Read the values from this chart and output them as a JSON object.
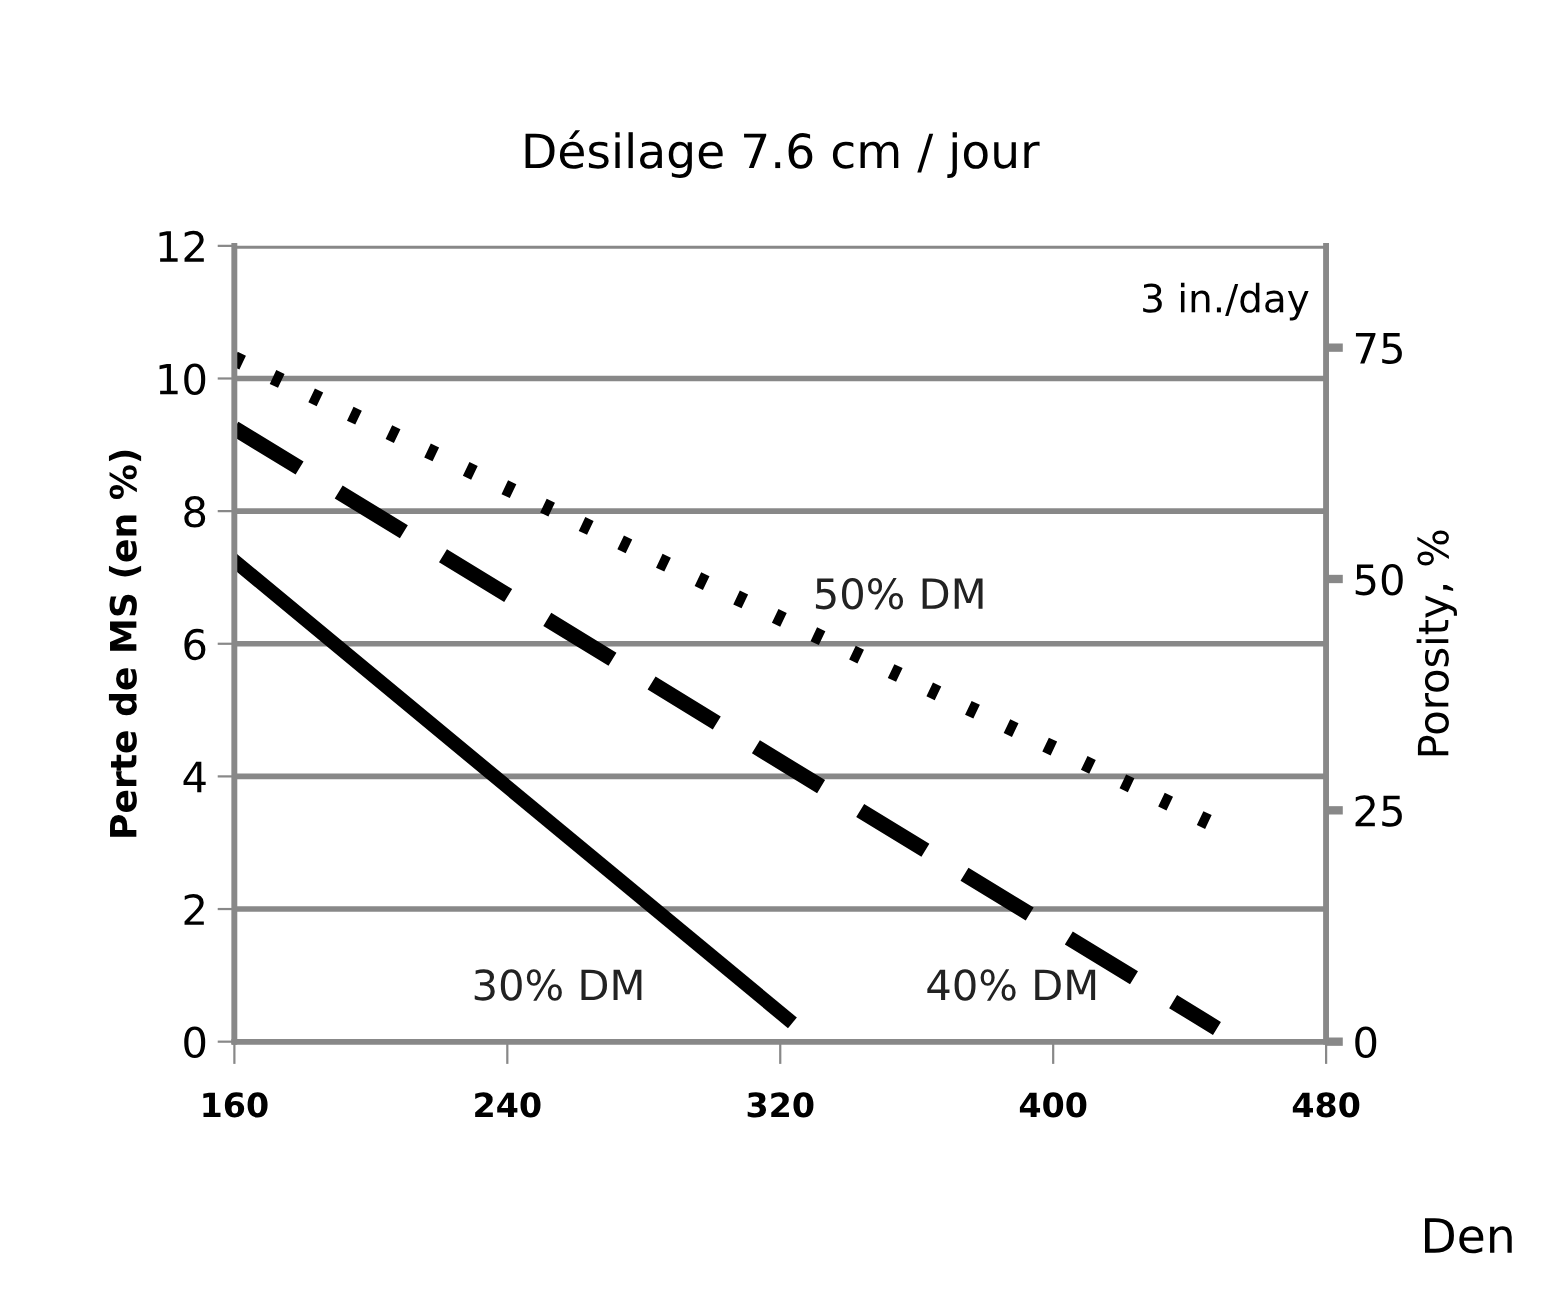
{
  "chart_data": {
    "type": "line",
    "title": "Désilage 7.6 cm / jour",
    "xlabel": "Den",
    "ylabel": "Perte de MS (en %)",
    "y2label": "Porosity, %",
    "annotations": [
      "3 in./day"
    ],
    "series": [
      {
        "name": "30% DM",
        "color": "#000000",
        "line_style": "solid",
        "x": [
          160,
          322
        ],
        "values": [
          7.25,
          0.35
        ]
      },
      {
        "name": "40% DM",
        "color": "#000000",
        "line_style": "dashed",
        "x": [
          160,
          448
        ],
        "values": [
          9.25,
          0.2
        ]
      },
      {
        "name": "50% DM",
        "color": "#000000",
        "line_style": "dotted",
        "x": [
          160,
          446
        ],
        "values": [
          10.3,
          3.3
        ]
      }
    ],
    "xlim": [
      160,
      480
    ],
    "xticks": [
      160,
      240,
      320,
      400,
      480
    ],
    "ylim": [
      0,
      12
    ],
    "yticks": [
      0,
      2,
      4,
      6,
      8,
      10,
      12
    ],
    "y2lim": [
      0,
      86
    ],
    "y2ticks": [
      0,
      25,
      50,
      75
    ],
    "grid": "y",
    "legend": false,
    "marker": "none"
  }
}
